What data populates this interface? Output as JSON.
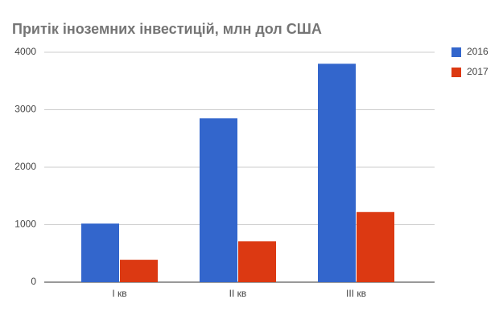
{
  "chart_data": {
    "type": "bar",
    "title": "Притік іноземних інвестицій, млн дол США",
    "categories": [
      "I кв",
      "II кв",
      "III кв"
    ],
    "series": [
      {
        "name": "2016",
        "color": "#3366cc",
        "values": [
          1020,
          2850,
          3800
        ]
      },
      {
        "name": "2017",
        "color": "#dc3912",
        "values": [
          390,
          710,
          1220
        ]
      }
    ],
    "ylim": [
      0,
      4000
    ],
    "yticks": [
      0,
      1000,
      2000,
      3000,
      4000
    ],
    "grid": true,
    "legend": "right"
  }
}
